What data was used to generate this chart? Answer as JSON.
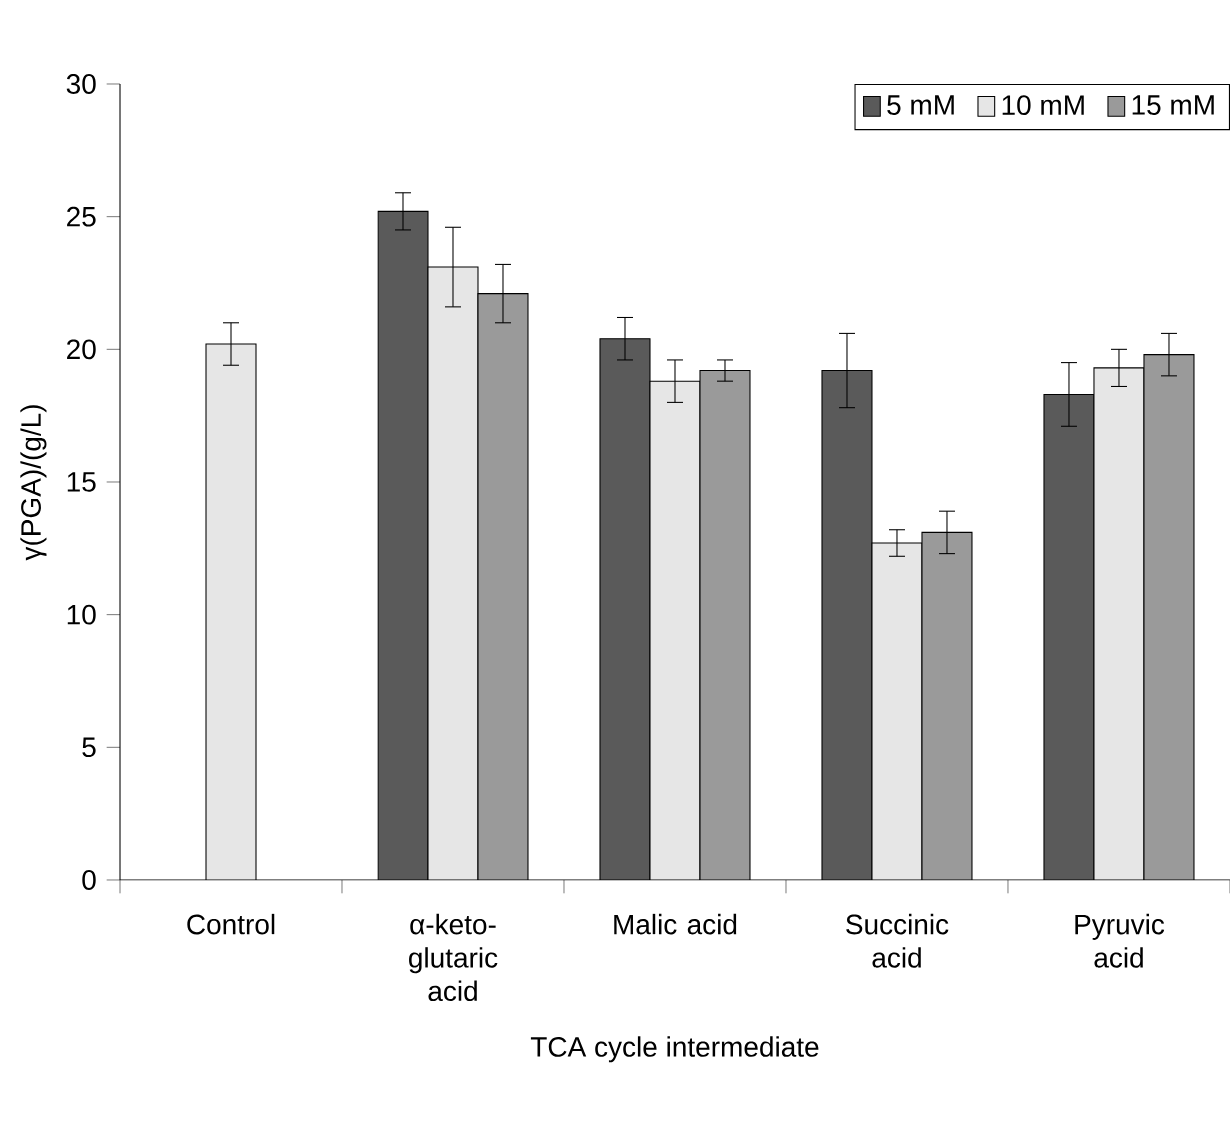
{
  "chart_data": {
    "type": "bar",
    "xlabel": "TCA cycle intermediate",
    "ylabel": "γ(PGA)/(g/L)",
    "categories": [
      "Control",
      "α-keto-glutaric acid",
      "Malic acid",
      "Succinic acid",
      "Pyruvic acid"
    ],
    "series": [
      {
        "name": "5 mM",
        "color": "#5a5a5a",
        "values": [
          null,
          25.2,
          20.4,
          19.2,
          18.3
        ],
        "errors": [
          null,
          0.7,
          0.8,
          1.4,
          1.2
        ]
      },
      {
        "name": "10 mM",
        "color": "#e6e6e6",
        "values": [
          20.2,
          23.1,
          18.8,
          12.7,
          19.3
        ],
        "errors": [
          0.8,
          1.5,
          0.8,
          0.5,
          0.7
        ]
      },
      {
        "name": "15 mM",
        "color": "#9a9a9a",
        "values": [
          null,
          22.1,
          19.2,
          13.1,
          19.8
        ],
        "errors": [
          null,
          1.1,
          0.4,
          0.8,
          0.8
        ]
      }
    ],
    "ylim": [
      0,
      30
    ],
    "yticks": [
      0,
      5,
      10,
      15,
      20,
      25,
      30
    ],
    "grid": false,
    "legend": "top right"
  }
}
